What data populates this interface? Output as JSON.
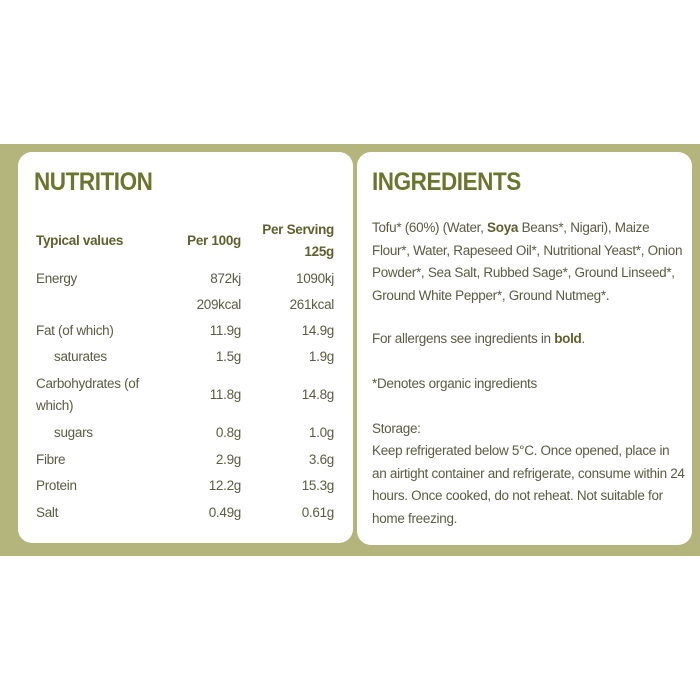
{
  "nutrition": {
    "title": "NUTRITION",
    "headers": {
      "label": "Typical values",
      "per100": "Per 100g",
      "per_serving_1": "Per Serving",
      "per_serving_2": "125g"
    },
    "rows": [
      {
        "label": "Energy",
        "per100": "872kj",
        "serving": "1090kj"
      },
      {
        "label": "",
        "per100": "209kcal",
        "serving": "261kcal"
      },
      {
        "label": "Fat (of which)",
        "per100": "11.9g",
        "serving": "14.9g"
      },
      {
        "label": "saturates",
        "per100": "1.5g",
        "serving": "1.9g"
      },
      {
        "label": "Carbohydrates (of",
        "label2": "which)",
        "per100": "11.8g",
        "serving": "14.8g"
      },
      {
        "label": "sugars",
        "per100": "0.8g",
        "serving": "1.0g"
      },
      {
        "label": "Fibre",
        "per100": "2.9g",
        "serving": "3.6g"
      },
      {
        "label": "Protein",
        "per100": "12.2g",
        "serving": "15.3g"
      },
      {
        "label": "Salt",
        "per100": "0.49g",
        "serving": "0.61g"
      }
    ]
  },
  "ingredients": {
    "title": "INGREDIENTS",
    "text_before_bold": "Tofu* (60%) (Water, ",
    "bold_word": "Soya",
    "text_after_bold": " Beans*, Nigari), Maize Flour*, Water, Rapeseed Oil*, Nutritional Yeast*, Onion Powder*, Sea Salt, Rubbed Sage*, Ground Linseed*, Ground White Pepper*, Ground Nutmeg*.",
    "allergen_text": "For allergens see ingredients in ",
    "allergen_bold": "bold",
    "allergen_end": ".",
    "organic_note": "*Denotes organic ingredients",
    "storage_label": "Storage:",
    "storage_text": "Keep refrigerated below 5°C. Once opened, place in an airtight container and refrigerate, consume within 24 hours. Once cooked, do not reheat. Not suitable for home freezing."
  },
  "colors": {
    "band": "#b4b57c",
    "title": "#6b7530",
    "text": "#5a5b45"
  }
}
